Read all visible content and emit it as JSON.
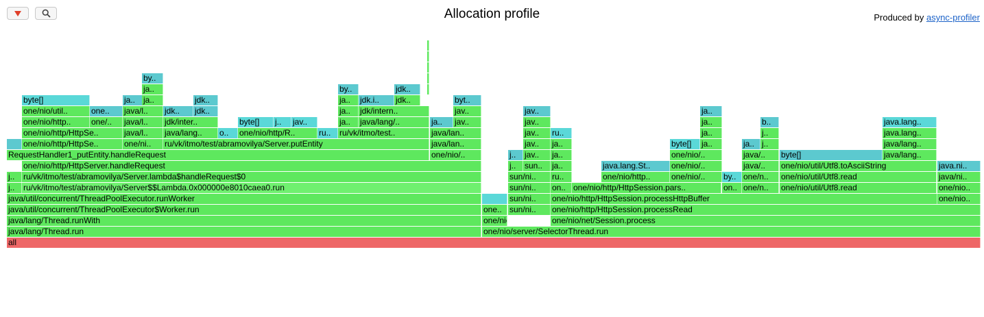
{
  "title": "Allocation profile",
  "produced_by": {
    "prefix": "Produced by ",
    "link": "async-profiler"
  },
  "toolbar": {
    "reverse": {
      "icon": "triangle-down-icon",
      "color": "#e0402a"
    },
    "search": {
      "icon": "search-icon"
    }
  },
  "colors": {
    "green": "#5ee85e",
    "green2": "#6ff06f",
    "cyan": "#5ad8d8",
    "teal": "#5cc9cf",
    "red": "#ee6767"
  },
  "frames": [
    {
      "text": "all",
      "c": "red"
    },
    {
      "text": "java/lang/Thread.run",
      "c": "g"
    },
    {
      "text": "one/nio/server/SelectorThread.run",
      "c": "g"
    },
    {
      "text": "java/lang/Thread.runWith",
      "c": "g"
    },
    {
      "text": "one/nio/net/..",
      "c": "g"
    },
    {
      "text": "one/nio/net/Session.process",
      "c": "g"
    },
    {
      "text": "java/util/concurrent/ThreadPoolExecutor$Worker.run",
      "c": "g"
    },
    {
      "text": "one..",
      "c": "g"
    },
    {
      "text": "sun/ni..",
      "c": "g"
    },
    {
      "text": "one/nio/http/HttpSession.processRead",
      "c": "g"
    },
    {
      "text": "java/util/concurrent/ThreadPoolExecutor.runWorker",
      "c": "g"
    },
    {
      "text": "",
      "c": "c"
    },
    {
      "text": "sun/ni..",
      "c": "g"
    },
    {
      "text": "one/nio/http/HttpSession.processHttpBuffer",
      "c": "g"
    },
    {
      "text": "one/nio..",
      "c": "g"
    },
    {
      "text": "j..",
      "c": "g"
    },
    {
      "text": "ru/vk/itmo/test/abramovilya/Server$$Lambda.0x000000e8010caea0.run",
      "c": "g2"
    },
    {
      "text": "sun/ni..",
      "c": "g"
    },
    {
      "text": "on..",
      "c": "g"
    },
    {
      "text": "one..",
      "c": "c"
    },
    {
      "text": "one/nio/http/HttpSession.pars..",
      "c": "g"
    },
    {
      "text": "on..",
      "c": "g"
    },
    {
      "text": "one/n..",
      "c": "g"
    },
    {
      "text": "one/nio/util/Utf8.read",
      "c": "g"
    },
    {
      "text": "one/nio..",
      "c": "g"
    },
    {
      "text": "j..",
      "c": "g"
    },
    {
      "text": "ru/vk/itmo/test/abramovilya/Server.lambda$handleRequest$0",
      "c": "g"
    },
    {
      "text": "sun/ni..",
      "c": "g"
    },
    {
      "text": "ru..",
      "c": "g"
    },
    {
      "text": "one/nio/http..",
      "c": "g"
    },
    {
      "text": "one/nio/..",
      "c": "g"
    },
    {
      "text": "by..",
      "c": "c"
    },
    {
      "text": "one/n..",
      "c": "g"
    },
    {
      "text": "one/nio/util/Utf8.read",
      "c": "g"
    },
    {
      "text": "java/ni..",
      "c": "g"
    },
    {
      "text": "one/nio/http/HttpServer.handleRequest",
      "c": "g"
    },
    {
      "text": "j..",
      "c": "g"
    },
    {
      "text": "sun..",
      "c": "g"
    },
    {
      "text": "ja..",
      "c": "g"
    },
    {
      "text": "java.lang.St..",
      "c": "t"
    },
    {
      "text": "one/nio/..",
      "c": "g"
    },
    {
      "text": "java/..",
      "c": "g"
    },
    {
      "text": "one/nio/util/Utf8.toAsciiString",
      "c": "g"
    },
    {
      "text": "java.ni..",
      "c": "t"
    },
    {
      "text": "RequestHandler1_putEntity.handleRequest",
      "c": "g"
    },
    {
      "text": "one/nio/..",
      "c": "g"
    },
    {
      "text": "j..",
      "c": "t"
    },
    {
      "text": "jav..",
      "c": "g"
    },
    {
      "text": "ja..",
      "c": "g"
    },
    {
      "text": "one/nio/..",
      "c": "g"
    },
    {
      "text": "java/..",
      "c": "g"
    },
    {
      "text": "byte[]",
      "c": "t"
    },
    {
      "text": "java/lang..",
      "c": "g"
    },
    {
      "text": "",
      "c": "t"
    },
    {
      "text": "one/nio/http/HttpSe..",
      "c": "g"
    },
    {
      "text": "one/ni..",
      "c": "g"
    },
    {
      "text": "ru/vk/itmo/test/abramovilya/Server.putEntity",
      "c": "g"
    },
    {
      "text": "java/lan..",
      "c": "g"
    },
    {
      "text": "jav..",
      "c": "g"
    },
    {
      "text": "ja..",
      "c": "g"
    },
    {
      "text": "byte[]",
      "c": "c"
    },
    {
      "text": "ja..",
      "c": "g"
    },
    {
      "text": "ja..",
      "c": "t"
    },
    {
      "text": "j..",
      "c": "g"
    },
    {
      "text": "java/lang..",
      "c": "g"
    },
    {
      "text": "one/nio/http/HttpSe..",
      "c": "g"
    },
    {
      "text": "java/l..",
      "c": "g"
    },
    {
      "text": "java/lang..",
      "c": "g"
    },
    {
      "text": "o..",
      "c": "c"
    },
    {
      "text": "one/nio/http/R..",
      "c": "g"
    },
    {
      "text": "ru..",
      "c": "c"
    },
    {
      "text": "ru/vk/itmo/test..",
      "c": "g"
    },
    {
      "text": "java/lan..",
      "c": "g"
    },
    {
      "text": "jav..",
      "c": "g"
    },
    {
      "text": "ru..",
      "c": "c"
    },
    {
      "text": "ja..",
      "c": "g"
    },
    {
      "text": "j..",
      "c": "g"
    },
    {
      "text": "java.lang..",
      "c": "g"
    },
    {
      "text": "one/nio/http..",
      "c": "g"
    },
    {
      "text": "one/..",
      "c": "g"
    },
    {
      "text": "java/l..",
      "c": "g"
    },
    {
      "text": "jdk/inter..",
      "c": "g"
    },
    {
      "text": "byte[]",
      "c": "c"
    },
    {
      "text": "j..",
      "c": "c"
    },
    {
      "text": "jav..",
      "c": "c"
    },
    {
      "text": "ja..",
      "c": "g"
    },
    {
      "text": "java/lang/..",
      "c": "g"
    },
    {
      "text": "ja..",
      "c": "t"
    },
    {
      "text": "jav..",
      "c": "g"
    },
    {
      "text": "jav..",
      "c": "g"
    },
    {
      "text": "ja..",
      "c": "g"
    },
    {
      "text": "b..",
      "c": "t"
    },
    {
      "text": "java.lang..",
      "c": "c"
    },
    {
      "text": "one/nio/util..",
      "c": "g"
    },
    {
      "text": "one..",
      "c": "t"
    },
    {
      "text": "java/l..",
      "c": "g"
    },
    {
      "text": "jdk..",
      "c": "t"
    },
    {
      "text": "jdk..",
      "c": "t"
    },
    {
      "text": "ja..",
      "c": "g"
    },
    {
      "text": "jdk/intern..",
      "c": "g"
    },
    {
      "text": "jav..",
      "c": "g"
    },
    {
      "text": "jav..",
      "c": "t"
    },
    {
      "text": "ja..",
      "c": "t"
    },
    {
      "text": "byte[]",
      "c": "c"
    },
    {
      "text": "ja..",
      "c": "t"
    },
    {
      "text": "ja..",
      "c": "g"
    },
    {
      "text": "jdk..",
      "c": "t"
    },
    {
      "text": "ja..",
      "c": "g"
    },
    {
      "text": "jdk.i..",
      "c": "t"
    },
    {
      "text": "jdk..",
      "c": "g"
    },
    {
      "text": "byt..",
      "c": "t"
    },
    {
      "text": "ja..",
      "c": "g"
    },
    {
      "text": "by..",
      "c": "t"
    },
    {
      "text": "jdk..",
      "c": "t"
    },
    {
      "text": "by..",
      "c": "t"
    },
    {
      "text": "",
      "c": "g"
    },
    {
      "text": "",
      "c": "g"
    },
    {
      "text": "",
      "c": "g"
    },
    {
      "text": "",
      "c": "g"
    },
    {
      "text": "",
      "c": "g"
    }
  ]
}
